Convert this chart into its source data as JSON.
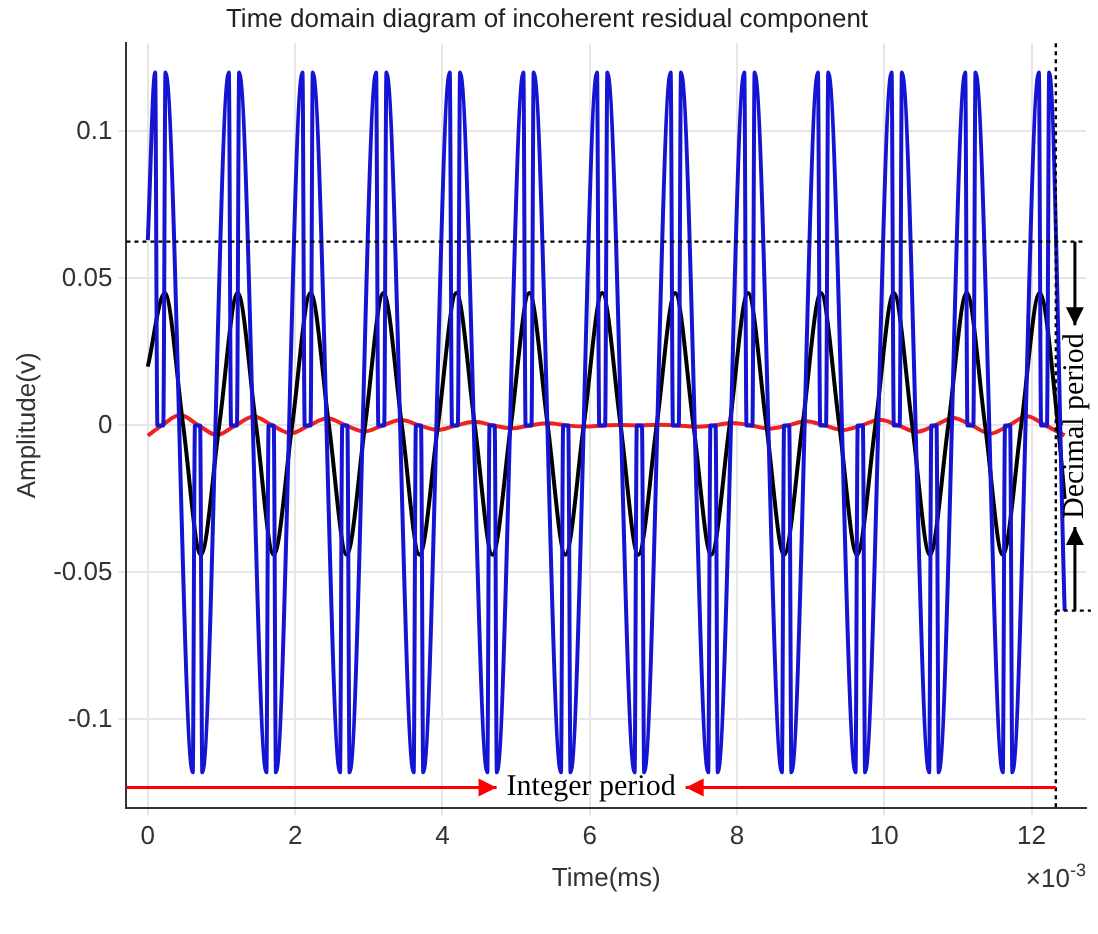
{
  "chart_data": {
    "type": "line",
    "title": "Time domain diagram of incoherent residual component",
    "xlabel": "Time(ms)",
    "ylabel": "Amplitude(v)",
    "xlim": [
      -0.29,
      12.74
    ],
    "xticks": [
      0,
      2,
      4,
      6,
      8,
      10,
      12
    ],
    "ylim": [
      -0.13,
      0.13
    ],
    "yticks": [
      -0.1,
      -0.05,
      0,
      0.05,
      0.1
    ],
    "grid": true,
    "legend": false,
    "series": [
      {
        "color": "#1414d2",
        "x": [
          0,
          0.1,
          0.13,
          0.21,
          0.24,
          0.61,
          0.64,
          0.71,
          0.74,
          1.1,
          1.13,
          1.21,
          1.24,
          1.61,
          1.64,
          1.71,
          1.74,
          2.1,
          2.13,
          2.21,
          2.24,
          2.61,
          2.64,
          2.71,
          2.74,
          3.1,
          3.13,
          3.21,
          3.24,
          3.61,
          3.64,
          3.71,
          3.74,
          4.1,
          4.13,
          4.21,
          4.24,
          4.61,
          4.64,
          4.71,
          4.74,
          5.1,
          5.13,
          5.21,
          5.24,
          5.61,
          5.64,
          5.71,
          5.74,
          6.1,
          6.13,
          6.21,
          6.24,
          6.61,
          6.64,
          6.71,
          6.74,
          7.1,
          7.13,
          7.21,
          7.24,
          7.61,
          7.64,
          7.71,
          7.74,
          8.1,
          8.13,
          8.21,
          8.24,
          8.61,
          8.64,
          8.71,
          8.74,
          9.1,
          9.13,
          9.21,
          9.24,
          9.61,
          9.64,
          9.71,
          9.74,
          10.1,
          10.13,
          10.21,
          10.24,
          10.61,
          10.64,
          10.71,
          10.74,
          11.1,
          11.13,
          11.21,
          11.24,
          11.61,
          11.64,
          11.71,
          11.74,
          12.1,
          12.13,
          12.21,
          12.24,
          12.45
        ],
        "values": [
          0.063,
          0.12,
          0,
          0,
          0.12,
          -0.118,
          0,
          0,
          -0.118,
          0.12,
          0,
          0,
          0.12,
          -0.118,
          0,
          0,
          -0.118,
          0.12,
          0,
          0,
          0.12,
          -0.118,
          0,
          0,
          -0.118,
          0.12,
          0,
          0,
          0.12,
          -0.118,
          0,
          0,
          -0.118,
          0.12,
          0,
          0,
          0.12,
          -0.118,
          0,
          0,
          -0.118,
          0.12,
          0,
          0,
          0.12,
          -0.118,
          0,
          0,
          -0.118,
          0.12,
          0,
          0,
          0.12,
          -0.118,
          0,
          0,
          -0.118,
          0.12,
          0,
          0,
          0.12,
          -0.118,
          0,
          0,
          -0.118,
          0.12,
          0,
          0,
          0.12,
          -0.118,
          0,
          0,
          -0.118,
          0.12,
          0,
          0,
          0.12,
          -0.118,
          0,
          0,
          -0.118,
          0.12,
          0,
          0,
          0.12,
          -0.118,
          0,
          0,
          -0.118,
          0.12,
          0,
          0,
          0.12,
          -0.118,
          0,
          0,
          -0.118,
          0.12,
          0,
          0,
          0.12,
          -0.063
        ]
      },
      {
        "color": "#000000",
        "x": [
          0,
          0.23,
          0.48,
          0.72,
          0.97,
          1.22,
          1.47,
          1.71,
          1.96,
          2.21,
          2.46,
          2.7,
          2.95,
          3.2,
          3.45,
          3.69,
          3.94,
          4.19,
          4.44,
          4.68,
          4.93,
          5.18,
          5.43,
          5.67,
          5.92,
          6.17,
          6.42,
          6.66,
          6.91,
          7.16,
          7.41,
          7.65,
          7.9,
          8.15,
          8.4,
          8.64,
          8.89,
          9.14,
          9.39,
          9.63,
          9.88,
          10.13,
          10.38,
          10.62,
          10.87,
          11.12,
          11.37,
          11.61,
          11.86,
          12.11,
          12.36,
          12.45
        ],
        "values": [
          0.02,
          0.045,
          0,
          -0.044,
          0,
          0.045,
          0,
          -0.044,
          0,
          0.045,
          0,
          -0.044,
          0,
          0.045,
          0,
          -0.044,
          0,
          0.045,
          0,
          -0.044,
          0,
          0.045,
          0,
          -0.044,
          0,
          0.045,
          0,
          -0.044,
          0,
          0.045,
          0,
          -0.044,
          0,
          0.045,
          0,
          -0.044,
          0,
          0.045,
          0,
          -0.044,
          0,
          0.045,
          0,
          -0.044,
          0,
          0.045,
          0,
          -0.044,
          0,
          0.045,
          0,
          -0.025
        ]
      },
      {
        "color": "#ee2222",
        "x": [
          0,
          0.19,
          0.44,
          0.69,
          0.94,
          1.19,
          1.44,
          1.69,
          1.94,
          2.19,
          2.44,
          2.69,
          2.94,
          3.19,
          3.44,
          3.69,
          3.94,
          4.19,
          4.44,
          4.69,
          4.94,
          5.19,
          5.44,
          5.69,
          5.94,
          6.19,
          6.44,
          6.69,
          6.94,
          7.19,
          7.44,
          7.69,
          7.94,
          8.19,
          8.44,
          8.69,
          8.94,
          9.19,
          9.44,
          9.69,
          9.94,
          10.19,
          10.44,
          10.69,
          10.94,
          11.19,
          11.44,
          11.69,
          11.94,
          12.19,
          12.45
        ],
        "values": [
          -0.0035,
          0,
          0.0035,
          0,
          -0.0033,
          0,
          0.003,
          0,
          -0.0027,
          0,
          0.0024,
          0,
          -0.0021,
          0,
          0.0018,
          0,
          -0.0015,
          0,
          0.0012,
          0,
          -0.001,
          0,
          0.0007,
          0,
          -0.0004,
          0,
          0.0001,
          0,
          0.0002,
          0,
          -0.0005,
          0,
          0.0008,
          0,
          -0.0011,
          0,
          0.0014,
          0,
          -0.0016,
          0,
          0.0019,
          0,
          -0.0022,
          0,
          0.0025,
          0,
          -0.0028,
          0,
          0.0031,
          0,
          -0.0034
        ]
      }
    ],
    "ref_lines": [
      {
        "axis": "y",
        "value": 0.0625,
        "color": "#000000",
        "line_style": "dotted"
      },
      {
        "axis": "x",
        "value": 12.33,
        "color": "#000000",
        "line_style": "dotted"
      }
    ],
    "annotations": [
      "Integer period",
      "Decimal period",
      "×10$^{-3}$"
    ]
  }
}
